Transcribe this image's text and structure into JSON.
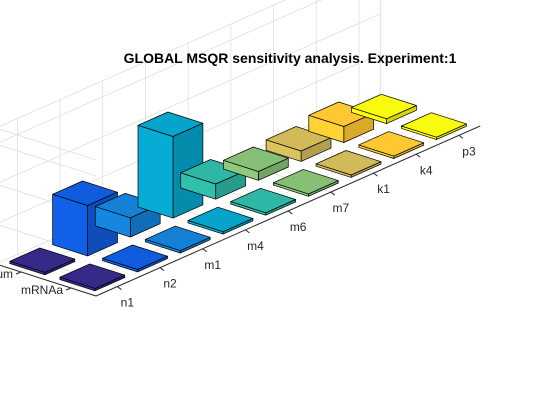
{
  "chart_data": {
    "type": "bar3",
    "title": "GLOBAL MSQR sensitivity analysis. Experiment:1",
    "xlabel": "",
    "ylabel": "",
    "zlabel": "",
    "x_categories": [
      "n1",
      "n2",
      "m1",
      "m4",
      "m6",
      "m7",
      "k1",
      "k4",
      "p3"
    ],
    "y_categories": [
      "mRNAa",
      "Lum"
    ],
    "zlim": [
      0,
      10
    ],
    "z_ticks": [
      0,
      5,
      10
    ],
    "grid": true,
    "colormap": "parula",
    "series": [
      {
        "values": [
          0.3,
          0.3,
          0.3,
          0.3,
          0.3,
          0.3,
          0.3,
          0.3,
          0.3
        ]
      },
      {
        "values": [
          0.3,
          6.3,
          2.4,
          10.2,
          1.9,
          1.1,
          1.3,
          2.0,
          0.6
        ]
      }
    ]
  }
}
